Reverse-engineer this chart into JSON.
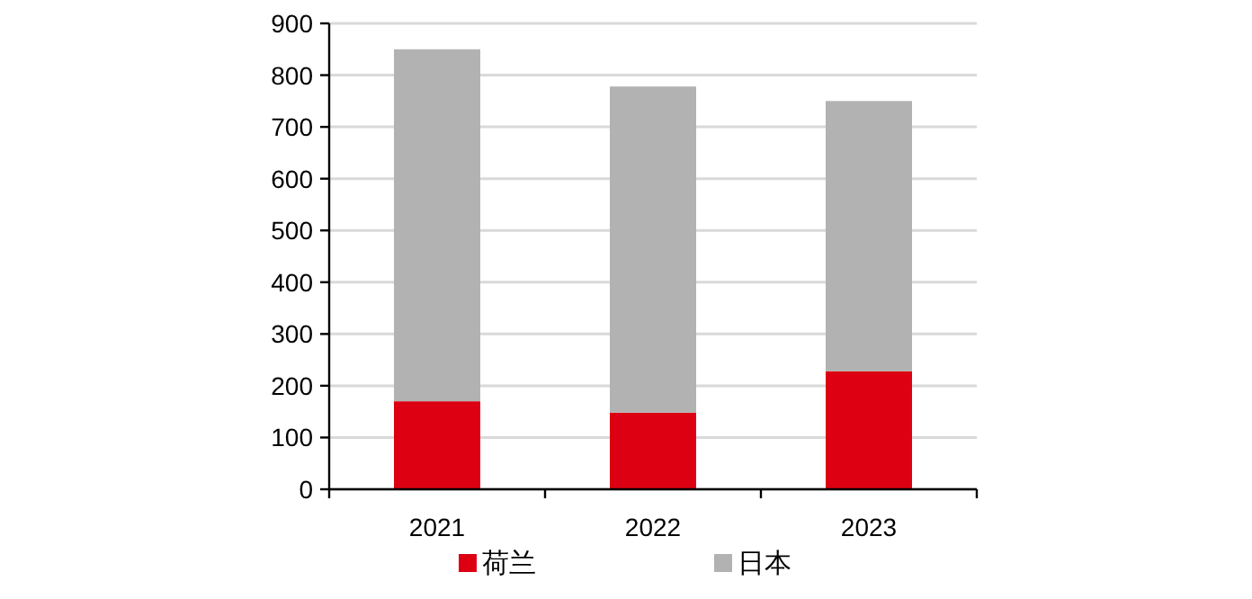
{
  "chart_data": {
    "type": "bar",
    "stacked": true,
    "categories": [
      "2021",
      "2022",
      "2023"
    ],
    "series": [
      {
        "name": "荷兰",
        "color": "#dc0012",
        "values": [
          170,
          148,
          228
        ]
      },
      {
        "name": "日本",
        "color": "#b2b2b2",
        "values": [
          680,
          630,
          522
        ]
      }
    ],
    "ylim": [
      0,
      900
    ],
    "yticks": [
      0,
      100,
      200,
      300,
      400,
      500,
      600,
      700,
      800,
      900
    ],
    "grid": "y",
    "legend": "bottom"
  }
}
